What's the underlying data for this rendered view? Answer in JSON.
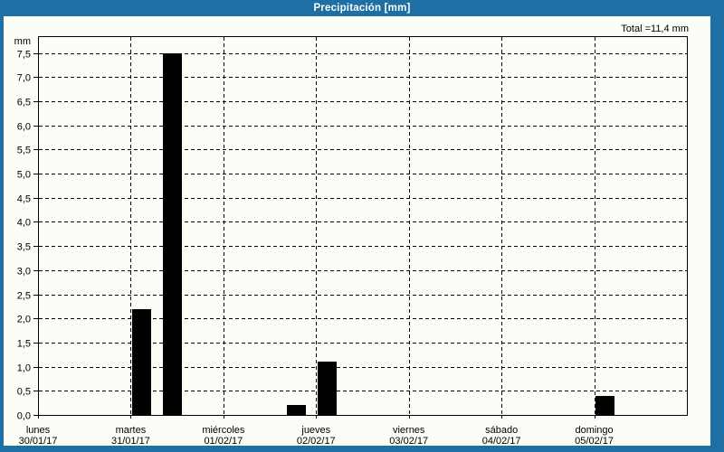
{
  "window": {
    "title": "Precipitación [mm]",
    "total_label": "Total =11,4 mm"
  },
  "colors": {
    "frame": "#1e6fa4",
    "title_text": "#ffffff",
    "panel_bg": "#fdfdf7",
    "axis": "#000000",
    "grid": "#000000",
    "bar": "#000000",
    "text": "#000000"
  },
  "chart_data": {
    "type": "bar",
    "title": "Precipitación [mm]",
    "ylabel": "mm",
    "unit": "mm",
    "total_mm": 11.4,
    "ylim": [
      0,
      7.85
    ],
    "ytick_step": 0.5,
    "ytick_labels": [
      "0,0",
      "0,5",
      "1,0",
      "1,5",
      "2,0",
      "2,5",
      "3,0",
      "3,5",
      "4,0",
      "4,5",
      "5,0",
      "5,5",
      "6,0",
      "6,5",
      "7,0",
      "7,5"
    ],
    "grid": "dashed",
    "legend": "none",
    "days": [
      {
        "name": "lunes",
        "date": "30/01/17"
      },
      {
        "name": "martes",
        "date": "31/01/17"
      },
      {
        "name": "miércoles",
        "date": "01/02/17"
      },
      {
        "name": "jueves",
        "date": "02/02/17"
      },
      {
        "name": "viernes",
        "date": "03/02/17"
      },
      {
        "name": "sábado",
        "date": "04/02/17"
      },
      {
        "name": "domingo",
        "date": "05/02/17"
      }
    ],
    "slot_centers": [
      0.117,
      0.45,
      0.787
    ],
    "bars": [
      {
        "day_index": 1,
        "slot": 0,
        "value_mm": 2.2
      },
      {
        "day_index": 1,
        "slot": 1,
        "value_mm": 7.5
      },
      {
        "day_index": 2,
        "slot": 2,
        "value_mm": 0.2
      },
      {
        "day_index": 3,
        "slot": 0,
        "value_mm": 1.1
      },
      {
        "day_index": 6,
        "slot": 0,
        "value_mm": 0.4
      }
    ]
  }
}
